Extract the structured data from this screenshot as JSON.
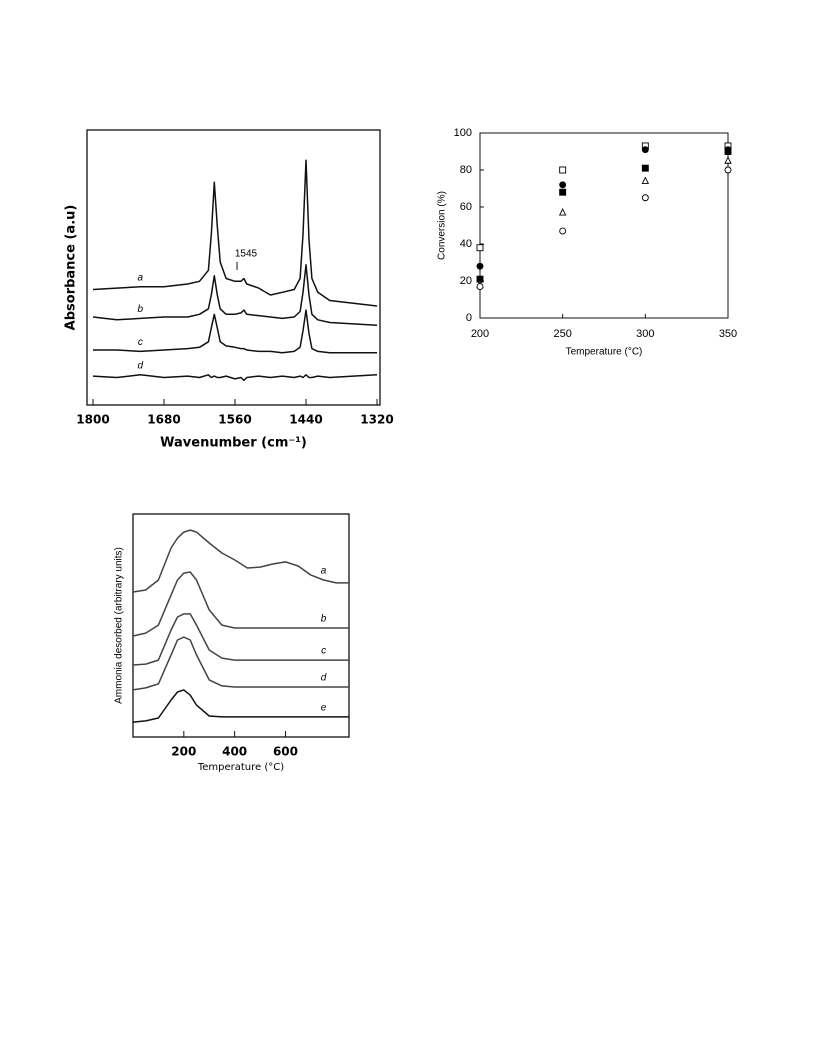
{
  "chart_data": [
    {
      "type": "line",
      "x_label": "Wavenumber (cm⁻¹)",
      "y_label": "Absorbance (a.u)",
      "annotation": "1545",
      "xlim": [
        1800,
        1320
      ],
      "xticks": [
        1800,
        1680,
        1560,
        1440,
        1320
      ],
      "ylim": [
        0,
        10
      ],
      "x": [
        1800,
        1760,
        1720,
        1680,
        1640,
        1620,
        1605,
        1600,
        1595,
        1590,
        1585,
        1575,
        1560,
        1550,
        1545,
        1540,
        1520,
        1500,
        1480,
        1460,
        1450,
        1445,
        1440,
        1435,
        1430,
        1420,
        1400,
        1360,
        1320
      ],
      "series": [
        {
          "name": "a",
          "color": "#111",
          "values": [
            4.2,
            4.25,
            4.3,
            4.3,
            4.4,
            4.5,
            4.9,
            6.2,
            8.1,
            6.5,
            5.2,
            4.6,
            4.5,
            4.5,
            4.6,
            4.4,
            4.25,
            4.0,
            4.1,
            4.2,
            4.6,
            6.2,
            8.9,
            6.0,
            4.6,
            4.1,
            3.8,
            3.7,
            3.6
          ]
        },
        {
          "name": "b",
          "color": "#111",
          "values": [
            3.2,
            3.1,
            3.15,
            3.2,
            3.2,
            3.3,
            3.5,
            4.0,
            4.7,
            4.0,
            3.5,
            3.3,
            3.3,
            3.35,
            3.45,
            3.3,
            3.25,
            3.2,
            3.15,
            3.2,
            3.4,
            4.1,
            5.1,
            4.0,
            3.3,
            3.1,
            3.0,
            2.95,
            2.9
          ]
        },
        {
          "name": "c",
          "color": "#111",
          "values": [
            2.0,
            2.0,
            1.95,
            2.0,
            2.05,
            2.1,
            2.3,
            2.8,
            3.3,
            2.8,
            2.3,
            2.15,
            2.1,
            2.05,
            2.05,
            2.0,
            1.95,
            1.95,
            1.9,
            1.95,
            2.1,
            2.7,
            3.45,
            2.6,
            2.05,
            1.95,
            1.9,
            1.9,
            1.9
          ]
        },
        {
          "name": "d",
          "color": "#111",
          "values": [
            1.05,
            1.0,
            1.1,
            1.0,
            1.05,
            1.0,
            1.1,
            1.0,
            1.05,
            1.0,
            1.0,
            1.05,
            0.95,
            1.0,
            0.9,
            1.0,
            1.05,
            1.0,
            1.05,
            1.0,
            1.05,
            1.0,
            1.1,
            1.0,
            1.0,
            1.05,
            1.0,
            1.05,
            1.1
          ]
        }
      ]
    },
    {
      "type": "scatter",
      "x_label": "Temperature (°C)",
      "y_label": "Conversion (%)",
      "xlim": [
        200,
        350
      ],
      "xticks": [
        200,
        250,
        300,
        350
      ],
      "ylim": [
        0,
        100
      ],
      "yticks": [
        0,
        20,
        40,
        60,
        80,
        100
      ],
      "x": [
        200,
        250,
        300,
        350
      ],
      "series": [
        {
          "marker": "square-open",
          "color": "#000",
          "values": [
            38,
            80,
            93,
            93
          ]
        },
        {
          "marker": "circle-filled",
          "color": "#000",
          "values": [
            28,
            72,
            91,
            91
          ]
        },
        {
          "marker": "square-filled",
          "color": "#000",
          "values": [
            21,
            68,
            81,
            90
          ]
        },
        {
          "marker": "triangle-open",
          "color": "#000",
          "values": [
            18,
            57,
            74,
            85
          ]
        },
        {
          "marker": "circle-open",
          "color": "#000",
          "values": [
            17,
            47,
            65,
            80
          ]
        }
      ]
    },
    {
      "type": "line",
      "x_label": "Temperature (°C)",
      "y_label": "Ammonia desorbed (arbitrary units)",
      "xlim": [
        0,
        850
      ],
      "xticks": [
        200,
        400,
        600
      ],
      "ylim": [
        0,
        10
      ],
      "x": [
        0,
        50,
        100,
        150,
        175,
        200,
        225,
        250,
        300,
        350,
        400,
        450,
        500,
        550,
        600,
        650,
        700,
        750,
        800,
        850
      ],
      "series": [
        {
          "name": "a",
          "color": "#444",
          "values": [
            6.5,
            6.59,
            7.04,
            8.48,
            8.92,
            9.19,
            9.28,
            9.19,
            8.7,
            8.25,
            7.94,
            7.58,
            7.62,
            7.76,
            7.85,
            7.67,
            7.26,
            7.04,
            6.91,
            6.91
          ]
        },
        {
          "name": "b",
          "color": "#444",
          "values": [
            4.53,
            4.66,
            5.02,
            6.37,
            7.04,
            7.35,
            7.4,
            7.04,
            5.7,
            5.02,
            4.89,
            4.89,
            4.89,
            4.89,
            4.89,
            4.89,
            4.89,
            4.89,
            4.89,
            4.89
          ]
        },
        {
          "name": "c",
          "color": "#444",
          "values": [
            3.23,
            3.27,
            3.45,
            4.8,
            5.38,
            5.52,
            5.52,
            5.02,
            3.9,
            3.54,
            3.45,
            3.45,
            3.45,
            3.45,
            3.45,
            3.45,
            3.45,
            3.45,
            3.45,
            3.45
          ]
        },
        {
          "name": "d",
          "color": "#444",
          "values": [
            2.11,
            2.2,
            2.38,
            3.68,
            4.35,
            4.48,
            4.35,
            3.68,
            2.56,
            2.29,
            2.24,
            2.24,
            2.24,
            2.24,
            2.24,
            2.24,
            2.24,
            2.24,
            2.24,
            2.24
          ]
        },
        {
          "name": "e",
          "color": "#111",
          "values": [
            0.67,
            0.72,
            0.85,
            1.66,
            2.02,
            2.11,
            1.88,
            1.43,
            0.94,
            0.9,
            0.9,
            0.9,
            0.9,
            0.9,
            0.9,
            0.9,
            0.9,
            0.9,
            0.9,
            0.9
          ]
        }
      ]
    }
  ]
}
